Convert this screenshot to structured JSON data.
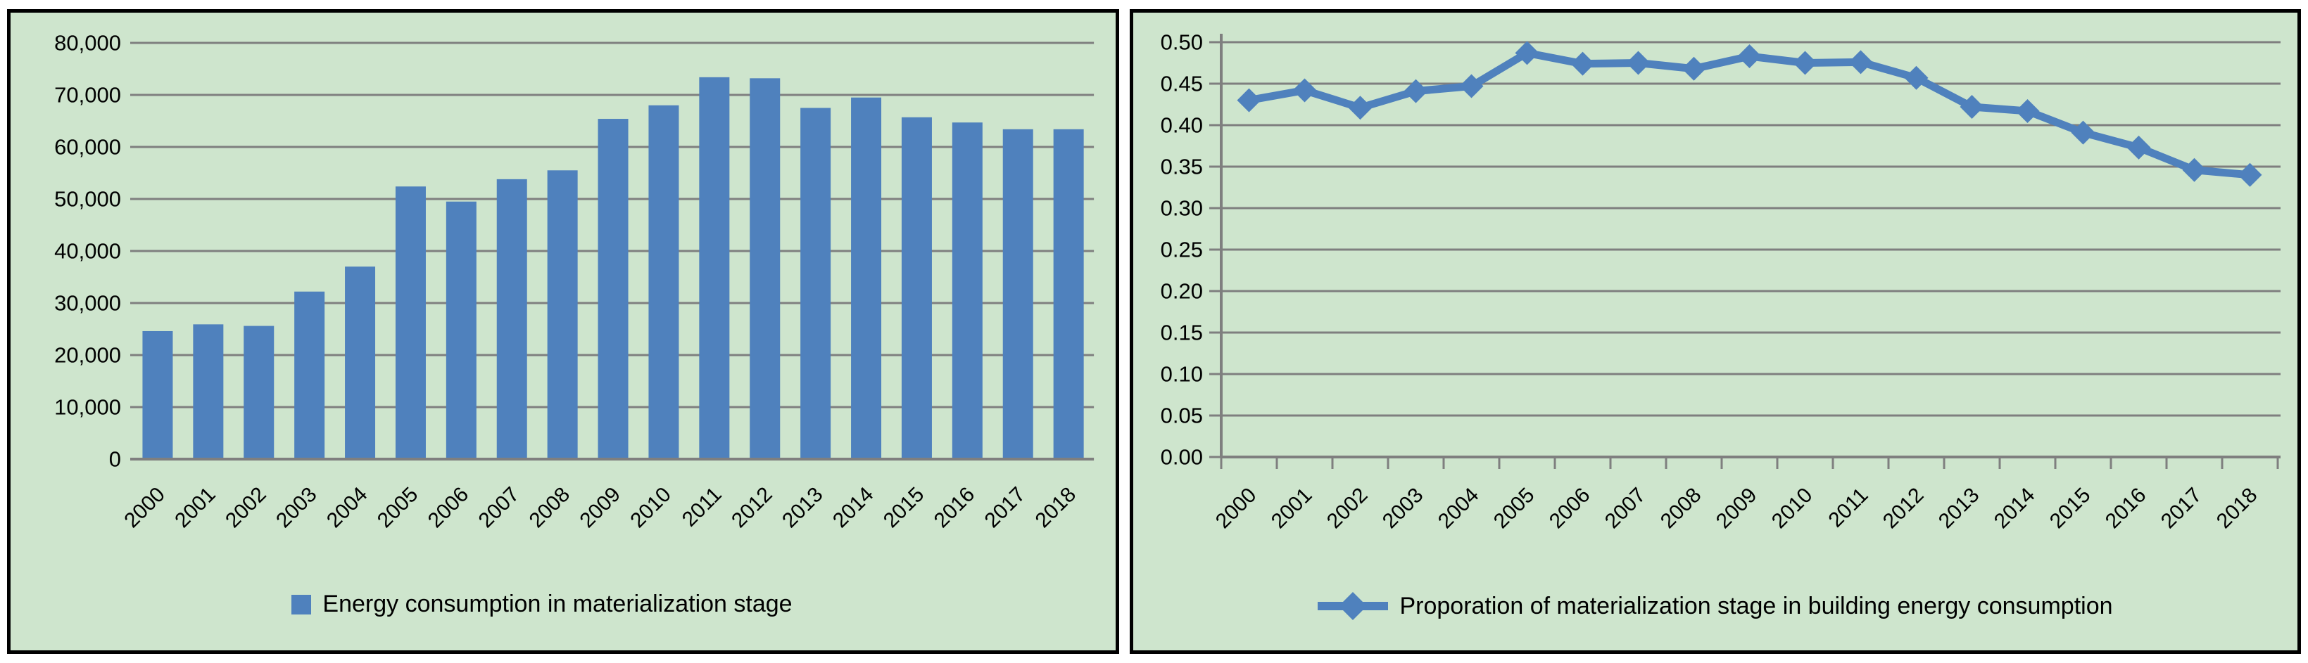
{
  "colors": {
    "panel_background": "#cee5cd",
    "series_blue": "#4f81bd",
    "gridline_gray": "#7f7f7f",
    "axis_gray": "#7f7f7f",
    "panel_border": "#000000",
    "text": "#000000",
    "page_background": "#ffffff"
  },
  "chart_data": [
    {
      "id": "energy-consumption-bar-chart",
      "type": "bar",
      "title": "",
      "legend": "Energy consumption in materialization stage",
      "categories": [
        "2000",
        "2001",
        "2002",
        "2003",
        "2004",
        "2005",
        "2006",
        "2007",
        "2008",
        "2009",
        "2010",
        "2011",
        "2012",
        "2013",
        "2014",
        "2015",
        "2016",
        "2017",
        "2018"
      ],
      "values": [
        24600,
        25900,
        25600,
        32200,
        37000,
        52400,
        49500,
        53800,
        55500,
        65400,
        68000,
        73400,
        73200,
        67500,
        69500,
        65700,
        64700,
        63400,
        63400
      ],
      "xlabel": "",
      "ylabel": "",
      "ylim": [
        0,
        80000
      ],
      "y_tick_step": 10000,
      "y_tick_labels": [
        "80,000",
        "70,000",
        "60,000",
        "50,000",
        "40,000",
        "30,000",
        "20,000",
        "10,000",
        "0"
      ],
      "grid": "horizontal",
      "legend_position": "bottom"
    },
    {
      "id": "proportion-line-chart",
      "type": "line",
      "title": "",
      "legend": "Proporation of materialization stage in building energy consumption",
      "categories": [
        "2000",
        "2001",
        "2002",
        "2003",
        "2004",
        "2005",
        "2006",
        "2007",
        "2008",
        "2009",
        "2010",
        "2011",
        "2012",
        "2013",
        "2014",
        "2015",
        "2016",
        "2017",
        "2018"
      ],
      "values": [
        0.43,
        0.442,
        0.421,
        0.441,
        0.447,
        0.487,
        0.474,
        0.475,
        0.468,
        0.483,
        0.475,
        0.476,
        0.457,
        0.422,
        0.417,
        0.391,
        0.373,
        0.346,
        0.34
      ],
      "xlabel": "",
      "ylabel": "",
      "ylim": [
        0.0,
        0.5
      ],
      "y_tick_step": 0.05,
      "y_tick_labels": [
        "0.50",
        "0.45",
        "0.40",
        "0.35",
        "0.30",
        "0.25",
        "0.20",
        "0.15",
        "0.10",
        "0.05",
        "0.00"
      ],
      "grid": "horizontal",
      "marker": "diamond",
      "legend_position": "bottom"
    }
  ]
}
